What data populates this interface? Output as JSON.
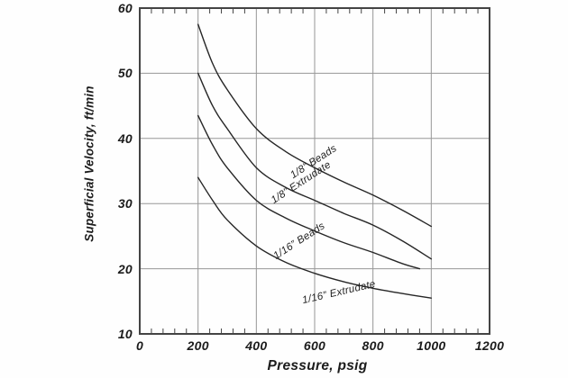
{
  "colors": {
    "curve": "#262626",
    "grid_minor": "#979797",
    "frame": "#444444",
    "text": "#1c1c1c"
  },
  "chart_data": {
    "type": "line",
    "title": "",
    "xlabel": "Pressure, psig",
    "ylabel": "Superficial Velocity, ft/min",
    "xlim": [
      0,
      1200
    ],
    "ylim": [
      10,
      60
    ],
    "xticks": [
      0,
      200,
      400,
      600,
      800,
      1000,
      1200
    ],
    "yticks": [
      10,
      20,
      30,
      40,
      50,
      60
    ],
    "minor_tick_step_x": 40,
    "grid": true,
    "legend_position": "inline-curve-labels",
    "series": [
      {
        "name": "1/8” Beads",
        "x": [
          200,
          250,
          300,
          400,
          500,
          600,
          700,
          800,
          900,
          1000
        ],
        "y": [
          57.5,
          51.5,
          47.5,
          41.5,
          38.0,
          35.5,
          33.3,
          31.3,
          29.0,
          26.5
        ]
      },
      {
        "name": "1/8” Extrudate",
        "x": [
          200,
          250,
          300,
          400,
          500,
          600,
          700,
          800,
          900,
          1000
        ],
        "y": [
          50.0,
          45.0,
          41.5,
          35.5,
          32.5,
          30.5,
          28.5,
          26.7,
          24.3,
          21.5
        ]
      },
      {
        "name": "1/16” Beads",
        "x": [
          200,
          250,
          300,
          400,
          500,
          600,
          700,
          800,
          900,
          960
        ],
        "y": [
          43.5,
          39.0,
          35.5,
          30.5,
          27.8,
          25.8,
          24.0,
          22.5,
          20.8,
          20.0
        ]
      },
      {
        "name": "1/16” Extrudate",
        "x": [
          200,
          250,
          300,
          400,
          500,
          600,
          700,
          800,
          900,
          1000
        ],
        "y": [
          34.0,
          30.5,
          27.5,
          23.5,
          21.0,
          19.3,
          18.0,
          17.0,
          16.2,
          15.5
        ]
      }
    ]
  }
}
